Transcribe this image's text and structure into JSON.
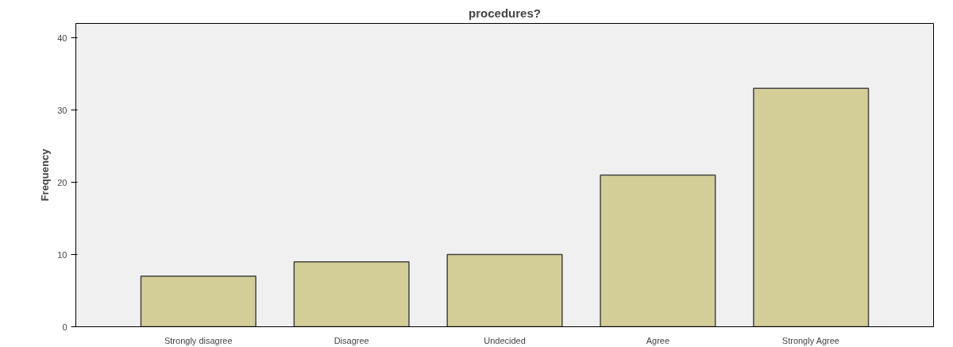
{
  "chart_data": {
    "type": "bar",
    "title": "procedures?",
    "ylabel": "Frequency",
    "categories": [
      "Strongly disagree",
      "Disagree",
      "Undecided",
      "Agree",
      "Strongly Agree"
    ],
    "values": [
      7,
      9,
      10,
      21,
      33
    ],
    "color": "#d3ce97",
    "ylim": [
      0,
      42
    ],
    "yticks": [
      0,
      10,
      20,
      30,
      40
    ],
    "grid": false
  }
}
